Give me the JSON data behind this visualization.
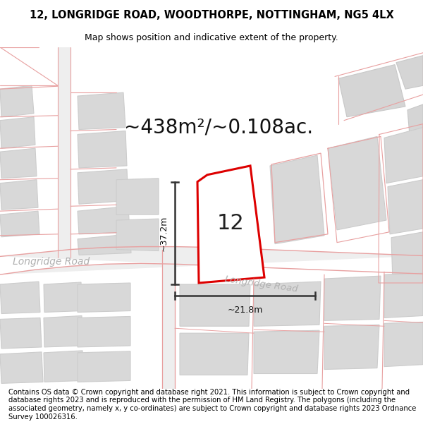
{
  "title": "12, LONGRIDGE ROAD, WOODTHORPE, NOTTINGHAM, NG5 4LX",
  "subtitle": "Map shows position and indicative extent of the property.",
  "area_label": "~438m²/~0.108ac.",
  "property_number": "12",
  "road_label": "Longridge Road",
  "road_label2": "Longridge Road",
  "dim_v": "~37.2m",
  "dim_h": "~21.8m",
  "copyright_text": "Contains OS data © Crown copyright and database right 2021. This information is subject to Crown copyright and database rights 2023 and is reproduced with the permission of HM Land Registry. The polygons (including the associated geometry, namely x, y co-ordinates) are subject to Crown copyright and database rights 2023 Ordnance Survey 100026316.",
  "bg_color": "#ffffff",
  "building_color": "#d8d8d8",
  "building_edge": "#cccccc",
  "red_line_color": "#e8a0a0",
  "property_edge": "#dd0000",
  "dim_line_color": "#333333",
  "road_label_color": "#b0b0b0",
  "title_fontsize": 10.5,
  "subtitle_fontsize": 9,
  "area_fontsize": 20,
  "property_num_fontsize": 22,
  "copyright_fontsize": 7.2
}
